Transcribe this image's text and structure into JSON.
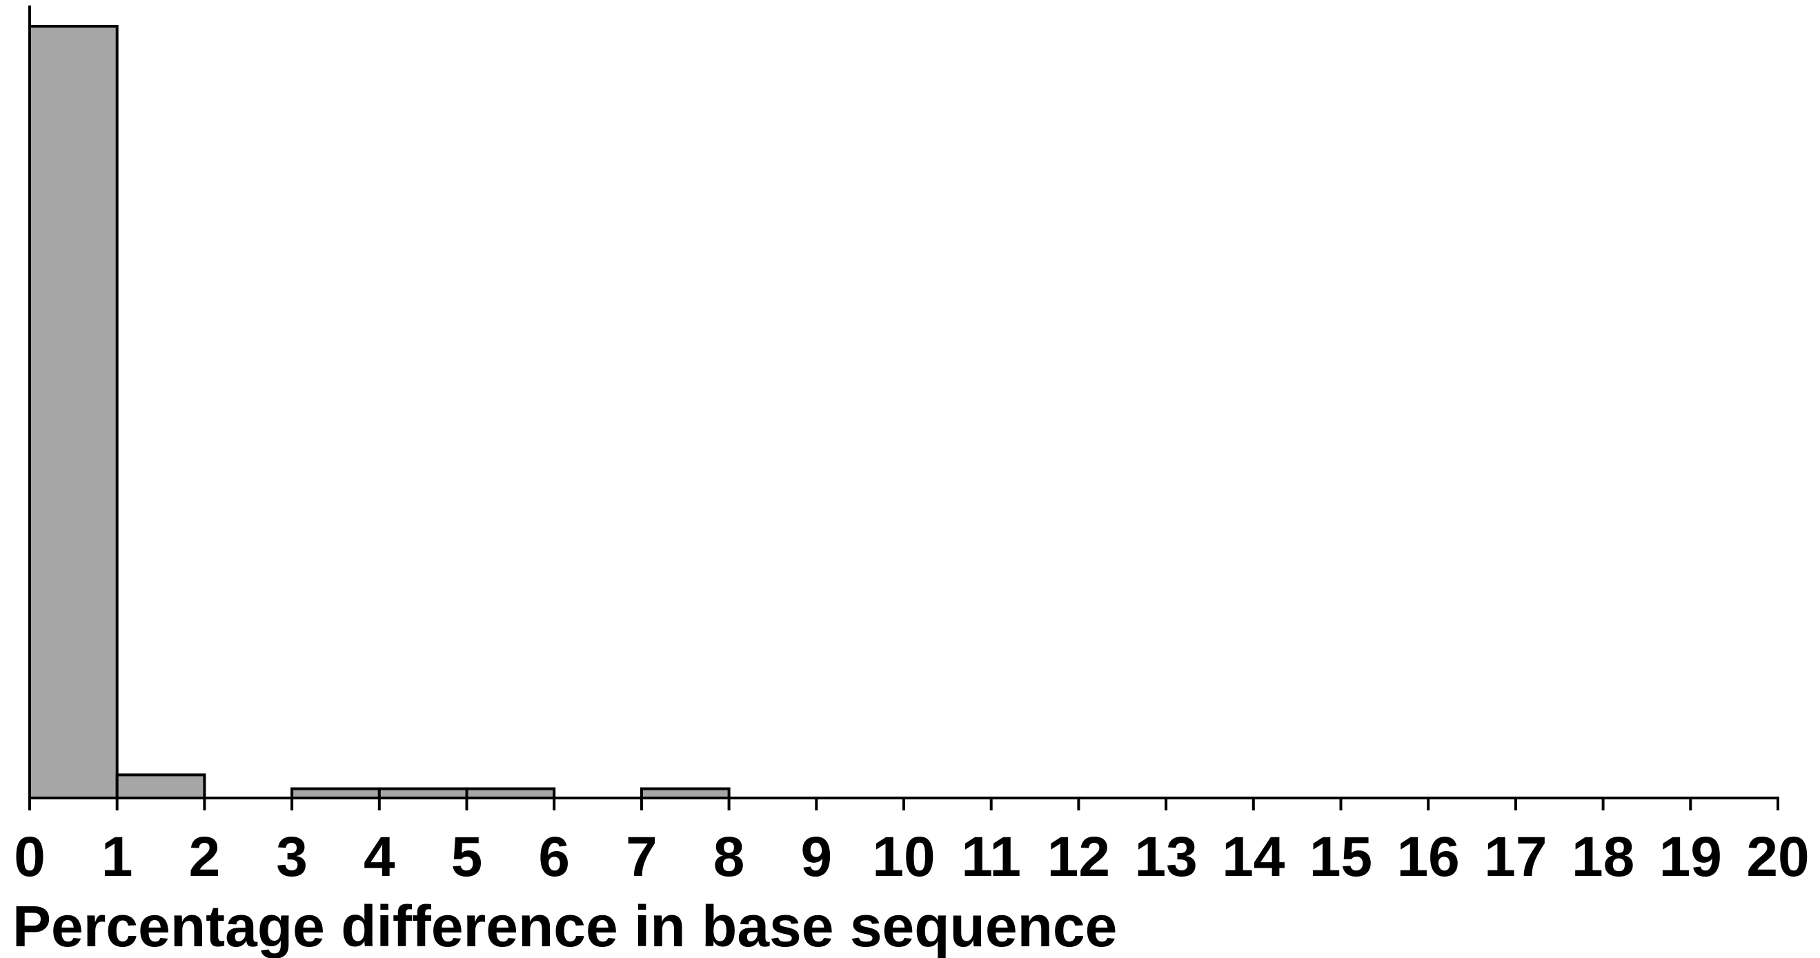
{
  "chart_data": {
    "type": "bar",
    "title": "",
    "xlabel": "Percentage difference in base sequence",
    "ylabel": "",
    "x_ticks": [
      "0",
      "1",
      "2",
      "3",
      "4",
      "5",
      "6",
      "7",
      "8",
      "9",
      "10",
      "11",
      "12",
      "13",
      "14",
      "15",
      "16",
      "17",
      "18",
      "19",
      "20"
    ],
    "xlim": [
      0,
      20
    ],
    "ylim": [
      0,
      100
    ],
    "bins": [
      {
        "start": 0,
        "end": 1,
        "value": 100
      },
      {
        "start": 1,
        "end": 2,
        "value": 3
      },
      {
        "start": 3,
        "end": 4,
        "value": 1.2
      },
      {
        "start": 4,
        "end": 5,
        "value": 1.2
      },
      {
        "start": 5,
        "end": 6,
        "value": 1.2
      },
      {
        "start": 7,
        "end": 8,
        "value": 1.2
      }
    ],
    "y_ticks_shown": false,
    "grid": false,
    "legend": "none",
    "bar_fill": "#a6a6a6",
    "bar_stroke": "#000000",
    "axis_color": "#000000"
  }
}
